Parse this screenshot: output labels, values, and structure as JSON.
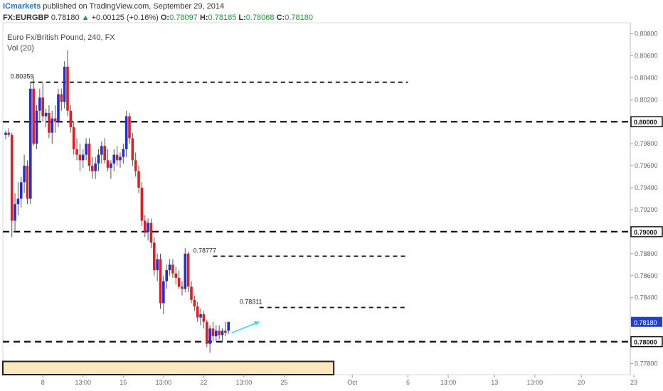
{
  "header": {
    "publisher": "ICmarkets",
    "published_text": "published on TradingView.com, September 29, 2014",
    "symbol": "FX:EURGBP",
    "last": "0.78180",
    "change_arrow": "▲",
    "change": "+0.00125 (+0.16%)",
    "o_label": "O:",
    "o_value": "0.78097",
    "h_label": "H:",
    "h_value": "0.78185",
    "l_label": "L:",
    "l_value": "0.78068",
    "c_label": "C:",
    "c_value": "0.78180"
  },
  "pane": {
    "title": "Euro Fx/British Pound, 240, FX",
    "indicator": "Vol (20)"
  },
  "chart_data": {
    "type": "candlestick",
    "title": "Euro Fx/British Pound, 240, FX",
    "ylim": [
      0.777,
      0.809
    ],
    "y_ticks": [
      "0.80800",
      "0.80600",
      "0.80400",
      "0.80200",
      "0.80000",
      "0.79800",
      "0.79600",
      "0.79400",
      "0.79200",
      "0.79000",
      "0.78800",
      "0.78600",
      "0.78400",
      "0.78200",
      "0.78000",
      "0.77800"
    ],
    "y_tick_values": [
      0.808,
      0.806,
      0.804,
      0.802,
      0.8,
      0.798,
      0.796,
      0.794,
      0.792,
      0.79,
      0.788,
      0.786,
      0.784,
      0.782,
      0.78,
      0.778
    ],
    "highlighted_labels": [
      {
        "text": "0.80000",
        "value": 0.8
      },
      {
        "text": "0.79000",
        "value": 0.79
      },
      {
        "text": "0.78000",
        "value": 0.78
      }
    ],
    "current_price": {
      "text": "0.78180",
      "value": 0.7818,
      "color": "#1e3ed6"
    },
    "x_ticks": [
      "8",
      "13:00",
      "15",
      "13:00",
      "22",
      "13:00",
      "25",
      "Oct",
      "6",
      "13:00",
      "13",
      "13:00",
      "20",
      "23"
    ],
    "x_tick_index": [
      12,
      25,
      38,
      51,
      64,
      77,
      90,
      112,
      130,
      143,
      158,
      171,
      186,
      203
    ],
    "levels": [
      {
        "value": 0.80359,
        "label": "0.80359",
        "start": 8,
        "end": 130,
        "style": "short"
      },
      {
        "value": 0.8,
        "start": 0,
        "end": 210,
        "style": "long"
      },
      {
        "value": 0.79,
        "start": 0,
        "end": 210,
        "style": "long"
      },
      {
        "value": 0.78777,
        "label": "0.78777",
        "start": 67,
        "end": 130,
        "style": "short"
      },
      {
        "value": 0.78311,
        "label": "0.78311",
        "start": 82,
        "end": 130,
        "style": "short"
      },
      {
        "value": 0.78,
        "start": 0,
        "end": 210,
        "style": "long"
      }
    ],
    "zone": {
      "low": 0.777,
      "high": 0.7782,
      "start": 0,
      "end": 106,
      "color": "#fde8be"
    },
    "arrow": {
      "from": [
        73,
        0.7808
      ],
      "to": [
        82,
        0.7818
      ],
      "color": "#3ed9e8"
    },
    "candles_ohlc": [
      [
        0.7988,
        0.7992,
        0.7984,
        0.799
      ],
      [
        0.799,
        0.7994,
        0.7986,
        0.7988
      ],
      [
        0.7988,
        0.799,
        0.7895,
        0.791
      ],
      [
        0.791,
        0.7935,
        0.79,
        0.7925
      ],
      [
        0.7925,
        0.7945,
        0.7915,
        0.793
      ],
      [
        0.793,
        0.795,
        0.7922,
        0.7945
      ],
      [
        0.7945,
        0.797,
        0.7935,
        0.796
      ],
      [
        0.796,
        0.7965,
        0.7925,
        0.793
      ],
      [
        0.793,
        0.8036,
        0.7925,
        0.803
      ],
      [
        0.803,
        0.804,
        0.7978,
        0.798
      ],
      [
        0.798,
        0.8015,
        0.7975,
        0.801
      ],
      [
        0.801,
        0.803,
        0.8,
        0.8022
      ],
      [
        0.8022,
        0.8035,
        0.8,
        0.8005
      ],
      [
        0.8005,
        0.8012,
        0.7995,
        0.8008
      ],
      [
        0.8008,
        0.8015,
        0.7985,
        0.799
      ],
      [
        0.799,
        0.801,
        0.798,
        0.8003
      ],
      [
        0.8003,
        0.8015,
        0.799,
        0.8
      ],
      [
        0.8,
        0.803,
        0.7995,
        0.8025
      ],
      [
        0.8025,
        0.803,
        0.801,
        0.8018
      ],
      [
        0.8018,
        0.8055,
        0.8012,
        0.805
      ],
      [
        0.805,
        0.8065,
        0.8005,
        0.801
      ],
      [
        0.801,
        0.8015,
        0.799,
        0.7995
      ],
      [
        0.7995,
        0.8,
        0.797,
        0.7975
      ],
      [
        0.7975,
        0.7985,
        0.7965,
        0.797
      ],
      [
        0.797,
        0.798,
        0.7955,
        0.7965
      ],
      [
        0.7965,
        0.7975,
        0.7958,
        0.797
      ],
      [
        0.797,
        0.7985,
        0.7965,
        0.798
      ],
      [
        0.798,
        0.7985,
        0.7955,
        0.796
      ],
      [
        0.796,
        0.7968,
        0.7948,
        0.7955
      ],
      [
        0.7955,
        0.7968,
        0.7948,
        0.7962
      ],
      [
        0.7962,
        0.7975,
        0.7955,
        0.797
      ],
      [
        0.797,
        0.7982,
        0.7962,
        0.7978
      ],
      [
        0.7978,
        0.7985,
        0.7962,
        0.7965
      ],
      [
        0.7965,
        0.7975,
        0.7955,
        0.7958
      ],
      [
        0.7958,
        0.7965,
        0.7948,
        0.7962
      ],
      [
        0.7962,
        0.7975,
        0.7955,
        0.797
      ],
      [
        0.797,
        0.7978,
        0.796,
        0.7965
      ],
      [
        0.7965,
        0.7972,
        0.7958,
        0.7968
      ],
      [
        0.7968,
        0.798,
        0.7962,
        0.7975
      ],
      [
        0.7975,
        0.801,
        0.7968,
        0.8005
      ],
      [
        0.8005,
        0.8008,
        0.798,
        0.7985
      ],
      [
        0.7985,
        0.799,
        0.796,
        0.7965
      ],
      [
        0.7965,
        0.7972,
        0.795,
        0.7955
      ],
      [
        0.7955,
        0.796,
        0.7935,
        0.794
      ],
      [
        0.794,
        0.7945,
        0.7905,
        0.791
      ],
      [
        0.791,
        0.7915,
        0.7895,
        0.79
      ],
      [
        0.79,
        0.7912,
        0.7892,
        0.7908
      ],
      [
        0.7908,
        0.7912,
        0.7885,
        0.789
      ],
      [
        0.789,
        0.7895,
        0.786,
        0.7865
      ],
      [
        0.7865,
        0.788,
        0.7855,
        0.7875
      ],
      [
        0.7875,
        0.788,
        0.783,
        0.7835
      ],
      [
        0.7835,
        0.786,
        0.7825,
        0.7855
      ],
      [
        0.7855,
        0.787,
        0.7848,
        0.7865
      ],
      [
        0.7865,
        0.7875,
        0.786,
        0.787
      ],
      [
        0.787,
        0.7875,
        0.7858,
        0.7862
      ],
      [
        0.7862,
        0.7868,
        0.7852,
        0.7858
      ],
      [
        0.7858,
        0.7865,
        0.7848,
        0.785
      ],
      [
        0.785,
        0.7855,
        0.7842,
        0.7848
      ],
      [
        0.7848,
        0.7885,
        0.7845,
        0.788
      ],
      [
        0.788,
        0.7882,
        0.7845,
        0.785
      ],
      [
        0.785,
        0.7855,
        0.7835,
        0.7838
      ],
      [
        0.7838,
        0.7842,
        0.7828,
        0.7832
      ],
      [
        0.7832,
        0.7836,
        0.7818,
        0.7822
      ],
      [
        0.7822,
        0.783,
        0.7815,
        0.7825
      ],
      [
        0.7825,
        0.7828,
        0.7812,
        0.7818
      ],
      [
        0.7818,
        0.782,
        0.7795,
        0.7798
      ],
      [
        0.7798,
        0.7815,
        0.779,
        0.7812
      ],
      [
        0.7812,
        0.7818,
        0.78,
        0.7805
      ],
      [
        0.7805,
        0.7815,
        0.78,
        0.781
      ],
      [
        0.781,
        0.7815,
        0.7802,
        0.7806
      ],
      [
        0.7806,
        0.7812,
        0.78,
        0.781
      ],
      [
        0.781,
        0.7818,
        0.7805,
        0.7808
      ],
      [
        0.781,
        0.7818,
        0.7807,
        0.7818
      ]
    ]
  }
}
